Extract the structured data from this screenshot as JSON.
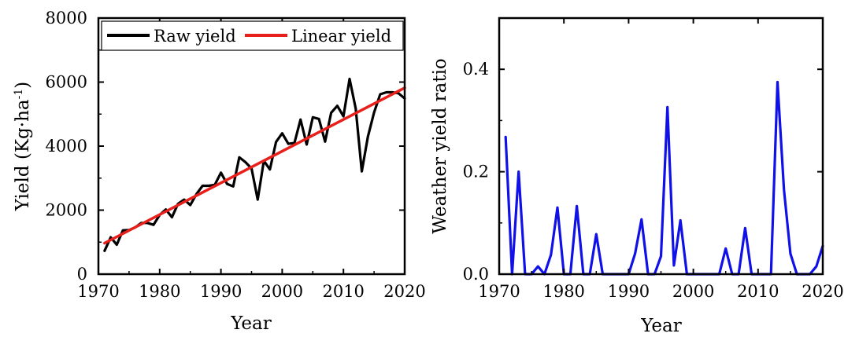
{
  "chart_data": [
    {
      "type": "line",
      "xlabel": "Year",
      "ylabel": "Yield (Kg·ha",
      "ylabel_sup": "-1",
      "ylabel_close": ")",
      "xlim": [
        1971,
        2020
      ],
      "ylim": [
        0,
        8000
      ],
      "xticks": [
        "1970",
        "1980",
        "1990",
        "2000",
        "2010",
        "2020"
      ],
      "xtick_values": [
        1970,
        1980,
        1990,
        2000,
        2010,
        2020
      ],
      "yticks": [
        "0",
        "2000",
        "4000",
        "6000",
        "8000"
      ],
      "ytick_values": [
        0,
        2000,
        4000,
        6000,
        8000
      ],
      "legend": {
        "placement": "top",
        "entries": [
          "Raw yield",
          "Linear yield"
        ]
      },
      "colors": {
        "Raw yield": "#000000",
        "Linear yield": "#e8201c"
      },
      "series": [
        {
          "name": "Raw yield",
          "x": [
            1971,
            1972,
            1973,
            1974,
            1975,
            1976,
            1977,
            1978,
            1979,
            1980,
            1981,
            1982,
            1983,
            1984,
            1985,
            1986,
            1987,
            1988,
            1989,
            1990,
            1991,
            1992,
            1993,
            1994,
            1995,
            1996,
            1997,
            1998,
            1999,
            2000,
            2001,
            2002,
            2003,
            2004,
            2005,
            2006,
            2007,
            2008,
            2009,
            2010,
            2011,
            2012,
            2013,
            2014,
            2015,
            2016,
            2017,
            2018,
            2019,
            2020
          ],
          "y": [
            730,
            1150,
            920,
            1370,
            1380,
            1460,
            1600,
            1600,
            1540,
            1850,
            2020,
            1780,
            2200,
            2330,
            2160,
            2500,
            2760,
            2760,
            2790,
            3170,
            2820,
            2740,
            3650,
            3500,
            3300,
            2330,
            3540,
            3270,
            4130,
            4400,
            4070,
            4100,
            4830,
            4050,
            4900,
            4850,
            4140,
            5040,
            5260,
            4930,
            6100,
            5170,
            3210,
            4300,
            5050,
            5620,
            5680,
            5680,
            5650,
            5490
          ]
        },
        {
          "name": "Linear yield",
          "x": [
            1971,
            2020
          ],
          "y": [
            970,
            5820
          ]
        }
      ]
    },
    {
      "type": "line",
      "xlabel": "Year",
      "ylabel": "Weather yield ratio",
      "xlim": [
        1970,
        2020
      ],
      "ylim": [
        0,
        0.5
      ],
      "xticks": [
        "1970",
        "1980",
        "1990",
        "2000",
        "2010",
        "2020"
      ],
      "xtick_values": [
        1970,
        1980,
        1990,
        2000,
        2010,
        2020
      ],
      "yticks": [
        "0.0",
        "0.2",
        "0.4"
      ],
      "ytick_values": [
        0,
        0.2,
        0.4
      ],
      "colors": {
        "line": "#1010e8"
      },
      "series": [
        {
          "x": [
            1971,
            1972,
            1973,
            1974,
            1975,
            1976,
            1977,
            1978,
            1979,
            1980,
            1981,
            1982,
            1983,
            1984,
            1985,
            1986,
            1987,
            1988,
            1989,
            1990,
            1991,
            1992,
            1993,
            1994,
            1995,
            1996,
            1997,
            1998,
            1999,
            2000,
            2001,
            2002,
            2003,
            2004,
            2005,
            2006,
            2007,
            2008,
            2009,
            2010,
            2011,
            2012,
            2013,
            2014,
            2015,
            2016,
            2017,
            2018,
            2019,
            2020
          ],
          "y": [
            0.268,
            0.0,
            0.2,
            0.0,
            0.0,
            0.015,
            0.0,
            0.038,
            0.13,
            0.0,
            0.0,
            0.133,
            0.0,
            0.0,
            0.078,
            0.0,
            0.0,
            0.0,
            0.0,
            0.0,
            0.04,
            0.107,
            0.0,
            0.0,
            0.035,
            0.326,
            0.017,
            0.105,
            0.0,
            0.0,
            0.0,
            0.0,
            0.0,
            0.0,
            0.05,
            0.0,
            0.0,
            0.09,
            0.0,
            0.0,
            0.0,
            0.0,
            0.375,
            0.165,
            0.04,
            0.0,
            0.0,
            0.0,
            0.015,
            0.055
          ]
        }
      ]
    }
  ]
}
